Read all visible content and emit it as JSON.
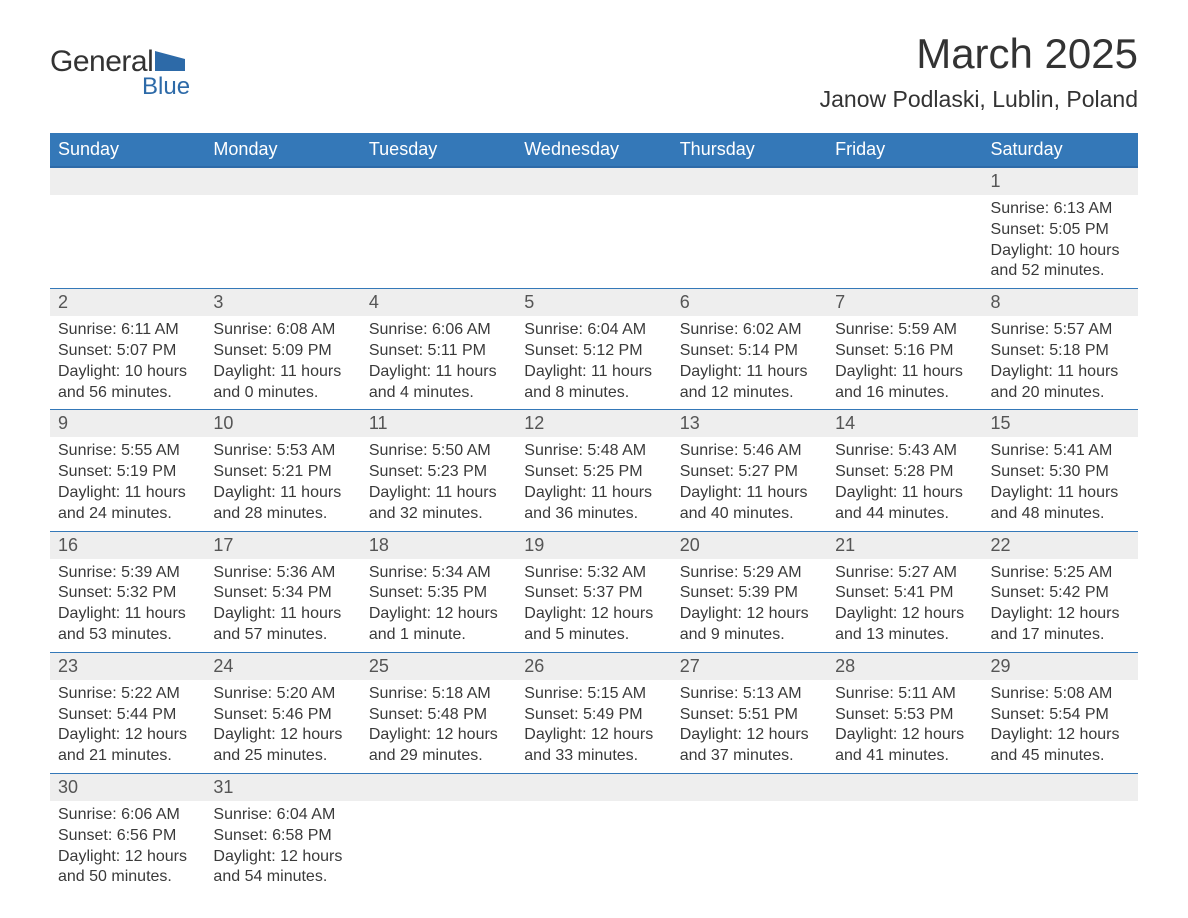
{
  "logo": {
    "text_general": "General",
    "text_blue": "Blue",
    "shape_color": "#2d6aa8"
  },
  "title": "March 2025",
  "location": "Janow Podlaski, Lublin, Poland",
  "colors": {
    "header_bg": "#3478b8",
    "header_text": "#ffffff",
    "daynum_bg": "#eeeeee",
    "border": "#3478b8",
    "text": "#3a3a3a"
  },
  "fonts": {
    "title_size_pt": 42,
    "location_size_pt": 23,
    "dow_size_pt": 18,
    "daynum_size_pt": 18,
    "data_size_pt": 16
  },
  "days_of_week": [
    "Sunday",
    "Monday",
    "Tuesday",
    "Wednesday",
    "Thursday",
    "Friday",
    "Saturday"
  ],
  "weeks": [
    [
      null,
      null,
      null,
      null,
      null,
      null,
      {
        "num": "1",
        "sunrise": "Sunrise: 6:13 AM",
        "sunset": "Sunset: 5:05 PM",
        "daylight1": "Daylight: 10 hours",
        "daylight2": "and 52 minutes."
      }
    ],
    [
      {
        "num": "2",
        "sunrise": "Sunrise: 6:11 AM",
        "sunset": "Sunset: 5:07 PM",
        "daylight1": "Daylight: 10 hours",
        "daylight2": "and 56 minutes."
      },
      {
        "num": "3",
        "sunrise": "Sunrise: 6:08 AM",
        "sunset": "Sunset: 5:09 PM",
        "daylight1": "Daylight: 11 hours",
        "daylight2": "and 0 minutes."
      },
      {
        "num": "4",
        "sunrise": "Sunrise: 6:06 AM",
        "sunset": "Sunset: 5:11 PM",
        "daylight1": "Daylight: 11 hours",
        "daylight2": "and 4 minutes."
      },
      {
        "num": "5",
        "sunrise": "Sunrise: 6:04 AM",
        "sunset": "Sunset: 5:12 PM",
        "daylight1": "Daylight: 11 hours",
        "daylight2": "and 8 minutes."
      },
      {
        "num": "6",
        "sunrise": "Sunrise: 6:02 AM",
        "sunset": "Sunset: 5:14 PM",
        "daylight1": "Daylight: 11 hours",
        "daylight2": "and 12 minutes."
      },
      {
        "num": "7",
        "sunrise": "Sunrise: 5:59 AM",
        "sunset": "Sunset: 5:16 PM",
        "daylight1": "Daylight: 11 hours",
        "daylight2": "and 16 minutes."
      },
      {
        "num": "8",
        "sunrise": "Sunrise: 5:57 AM",
        "sunset": "Sunset: 5:18 PM",
        "daylight1": "Daylight: 11 hours",
        "daylight2": "and 20 minutes."
      }
    ],
    [
      {
        "num": "9",
        "sunrise": "Sunrise: 5:55 AM",
        "sunset": "Sunset: 5:19 PM",
        "daylight1": "Daylight: 11 hours",
        "daylight2": "and 24 minutes."
      },
      {
        "num": "10",
        "sunrise": "Sunrise: 5:53 AM",
        "sunset": "Sunset: 5:21 PM",
        "daylight1": "Daylight: 11 hours",
        "daylight2": "and 28 minutes."
      },
      {
        "num": "11",
        "sunrise": "Sunrise: 5:50 AM",
        "sunset": "Sunset: 5:23 PM",
        "daylight1": "Daylight: 11 hours",
        "daylight2": "and 32 minutes."
      },
      {
        "num": "12",
        "sunrise": "Sunrise: 5:48 AM",
        "sunset": "Sunset: 5:25 PM",
        "daylight1": "Daylight: 11 hours",
        "daylight2": "and 36 minutes."
      },
      {
        "num": "13",
        "sunrise": "Sunrise: 5:46 AM",
        "sunset": "Sunset: 5:27 PM",
        "daylight1": "Daylight: 11 hours",
        "daylight2": "and 40 minutes."
      },
      {
        "num": "14",
        "sunrise": "Sunrise: 5:43 AM",
        "sunset": "Sunset: 5:28 PM",
        "daylight1": "Daylight: 11 hours",
        "daylight2": "and 44 minutes."
      },
      {
        "num": "15",
        "sunrise": "Sunrise: 5:41 AM",
        "sunset": "Sunset: 5:30 PM",
        "daylight1": "Daylight: 11 hours",
        "daylight2": "and 48 minutes."
      }
    ],
    [
      {
        "num": "16",
        "sunrise": "Sunrise: 5:39 AM",
        "sunset": "Sunset: 5:32 PM",
        "daylight1": "Daylight: 11 hours",
        "daylight2": "and 53 minutes."
      },
      {
        "num": "17",
        "sunrise": "Sunrise: 5:36 AM",
        "sunset": "Sunset: 5:34 PM",
        "daylight1": "Daylight: 11 hours",
        "daylight2": "and 57 minutes."
      },
      {
        "num": "18",
        "sunrise": "Sunrise: 5:34 AM",
        "sunset": "Sunset: 5:35 PM",
        "daylight1": "Daylight: 12 hours",
        "daylight2": "and 1 minute."
      },
      {
        "num": "19",
        "sunrise": "Sunrise: 5:32 AM",
        "sunset": "Sunset: 5:37 PM",
        "daylight1": "Daylight: 12 hours",
        "daylight2": "and 5 minutes."
      },
      {
        "num": "20",
        "sunrise": "Sunrise: 5:29 AM",
        "sunset": "Sunset: 5:39 PM",
        "daylight1": "Daylight: 12 hours",
        "daylight2": "and 9 minutes."
      },
      {
        "num": "21",
        "sunrise": "Sunrise: 5:27 AM",
        "sunset": "Sunset: 5:41 PM",
        "daylight1": "Daylight: 12 hours",
        "daylight2": "and 13 minutes."
      },
      {
        "num": "22",
        "sunrise": "Sunrise: 5:25 AM",
        "sunset": "Sunset: 5:42 PM",
        "daylight1": "Daylight: 12 hours",
        "daylight2": "and 17 minutes."
      }
    ],
    [
      {
        "num": "23",
        "sunrise": "Sunrise: 5:22 AM",
        "sunset": "Sunset: 5:44 PM",
        "daylight1": "Daylight: 12 hours",
        "daylight2": "and 21 minutes."
      },
      {
        "num": "24",
        "sunrise": "Sunrise: 5:20 AM",
        "sunset": "Sunset: 5:46 PM",
        "daylight1": "Daylight: 12 hours",
        "daylight2": "and 25 minutes."
      },
      {
        "num": "25",
        "sunrise": "Sunrise: 5:18 AM",
        "sunset": "Sunset: 5:48 PM",
        "daylight1": "Daylight: 12 hours",
        "daylight2": "and 29 minutes."
      },
      {
        "num": "26",
        "sunrise": "Sunrise: 5:15 AM",
        "sunset": "Sunset: 5:49 PM",
        "daylight1": "Daylight: 12 hours",
        "daylight2": "and 33 minutes."
      },
      {
        "num": "27",
        "sunrise": "Sunrise: 5:13 AM",
        "sunset": "Sunset: 5:51 PM",
        "daylight1": "Daylight: 12 hours",
        "daylight2": "and 37 minutes."
      },
      {
        "num": "28",
        "sunrise": "Sunrise: 5:11 AM",
        "sunset": "Sunset: 5:53 PM",
        "daylight1": "Daylight: 12 hours",
        "daylight2": "and 41 minutes."
      },
      {
        "num": "29",
        "sunrise": "Sunrise: 5:08 AM",
        "sunset": "Sunset: 5:54 PM",
        "daylight1": "Daylight: 12 hours",
        "daylight2": "and 45 minutes."
      }
    ],
    [
      {
        "num": "30",
        "sunrise": "Sunrise: 6:06 AM",
        "sunset": "Sunset: 6:56 PM",
        "daylight1": "Daylight: 12 hours",
        "daylight2": "and 50 minutes."
      },
      {
        "num": "31",
        "sunrise": "Sunrise: 6:04 AM",
        "sunset": "Sunset: 6:58 PM",
        "daylight1": "Daylight: 12 hours",
        "daylight2": "and 54 minutes."
      },
      null,
      null,
      null,
      null,
      null
    ]
  ]
}
